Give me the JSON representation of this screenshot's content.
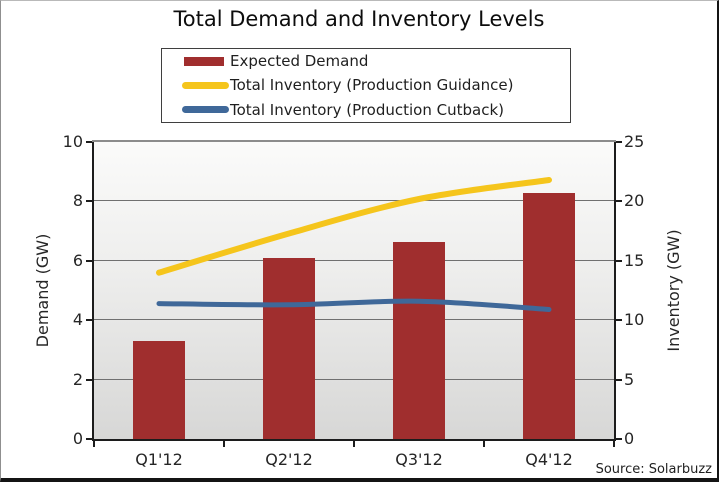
{
  "title": "Total Demand and Inventory Levels",
  "source": "Source: Solarbuzz",
  "colors": {
    "demand_bar": "#A02E2E",
    "guidance_line": "#F5C51C",
    "cutback_line": "#3F6899",
    "gridline": "#707070",
    "axis_line": "#1c1c1c",
    "plot_border_top": "#8c8c8c"
  },
  "chart_data": {
    "type": "bar",
    "subtype": "bar+line combo, dual axis",
    "title": "Total Demand and Inventory Levels",
    "categories": [
      "Q1'12",
      "Q2'12",
      "Q3'12",
      "Q4'12"
    ],
    "series": [
      {
        "name": "Expected Demand",
        "type": "bar",
        "axis": "left",
        "values": [
          3.3,
          6.1,
          6.65,
          8.3
        ],
        "color": "#A02E2E"
      },
      {
        "name": "Total Inventory (Production Guidance)",
        "type": "line",
        "axis": "right",
        "values": [
          14.0,
          17.3,
          20.2,
          21.8
        ],
        "color": "#F5C51C",
        "smooth": true,
        "stroke_width": 6
      },
      {
        "name": "Total Inventory (Production Cutback)",
        "type": "line",
        "axis": "right",
        "values": [
          11.4,
          11.3,
          11.6,
          10.9
        ],
        "color": "#3F6899",
        "smooth": true,
        "stroke_width": 5
      }
    ],
    "left_axis": {
      "label": "Demand (GW)",
      "min": 0,
      "max": 10,
      "ticks": [
        0,
        2,
        4,
        6,
        8,
        10
      ]
    },
    "right_axis": {
      "label": "Inventory (GW)",
      "min": 0,
      "max": 25,
      "ticks": [
        0,
        5,
        10,
        15,
        20,
        25
      ]
    },
    "grid": true,
    "legend_position": "top-center",
    "source_note": "Source: Solarbuzz"
  }
}
